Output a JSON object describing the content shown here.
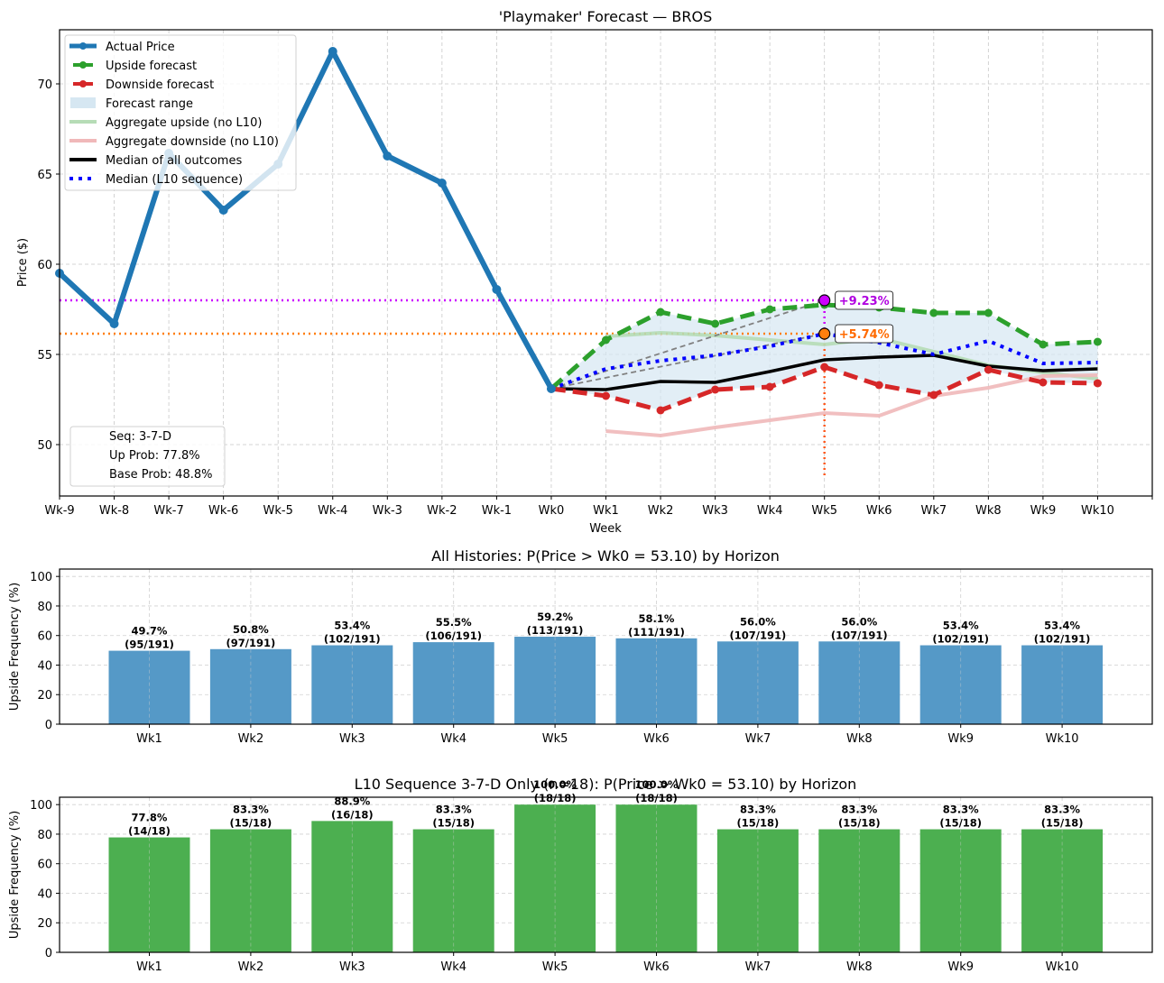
{
  "chart_data": [
    {
      "type": "line",
      "title": "'Playmaker' Forecast — BROS",
      "xlabel": "Week",
      "ylabel": "Price ($)",
      "grid": true,
      "x_ticks": [
        -9,
        -8,
        -7,
        -6,
        -5,
        -4,
        -3,
        -2,
        -1,
        0,
        1,
        2,
        3,
        4,
        5,
        6,
        7,
        8,
        9,
        10,
        11
      ],
      "x_tick_labels": [
        "Wk-9",
        "Wk-8",
        "Wk-7",
        "Wk-6",
        "Wk-5",
        "Wk-4",
        "Wk-3",
        "Wk-2",
        "Wk-1",
        "Wk0",
        "Wk1",
        "Wk2",
        "Wk3",
        "Wk4",
        "Wk5",
        "Wk6",
        "Wk7",
        "Wk8",
        "Wk9",
        "Wk10",
        ""
      ],
      "xlim": [
        -9,
        11
      ],
      "ylim": [
        47.15,
        73.0
      ],
      "y_ticks": [
        50,
        55,
        60,
        65,
        70
      ],
      "y_tick_labels": [
        "50",
        "55",
        "60",
        "65",
        "70"
      ],
      "legend_position": "top-left",
      "series": [
        {
          "key": "actual",
          "name": "Actual Price",
          "color": "#1f77b4",
          "x": [
            -9,
            -8,
            -7,
            -6,
            -5,
            -4,
            -3,
            -2,
            -1,
            0
          ],
          "values": [
            59.5,
            56.7,
            66.15,
            63.0,
            65.55,
            71.8,
            66.0,
            64.5,
            58.6,
            53.1
          ]
        },
        {
          "key": "upside",
          "name": "Upside forecast",
          "color": "#2ca02c",
          "x": [
            0,
            1,
            2,
            3,
            4,
            5,
            6,
            7,
            8,
            9,
            10
          ],
          "values": [
            53.1,
            55.8,
            57.35,
            56.7,
            57.5,
            57.75,
            57.6,
            57.3,
            57.3,
            55.55,
            55.7
          ]
        },
        {
          "key": "downside",
          "name": "Downside forecast",
          "color": "#d62728",
          "x": [
            0,
            1,
            2,
            3,
            4,
            5,
            6,
            7,
            8,
            9,
            10
          ],
          "values": [
            53.1,
            52.7,
            51.9,
            53.05,
            53.2,
            54.3,
            53.3,
            52.75,
            54.15,
            53.45,
            53.4
          ]
        },
        {
          "key": "range",
          "name": "Forecast range",
          "color": "#d6e7f2"
        },
        {
          "key": "agg_up",
          "name": "Aggregate upside (no L10)",
          "color": "#b6dcb6",
          "x": [
            1,
            2,
            3,
            4,
            5,
            6,
            7,
            8,
            9,
            10
          ],
          "values": [
            56.0,
            56.2,
            56.05,
            55.8,
            55.55,
            55.9,
            55.15,
            54.4,
            54.0,
            53.65
          ]
        },
        {
          "key": "agg_down",
          "name": "Aggregate downside (no L10)",
          "color": "#f0b8b9",
          "x": [
            1,
            2,
            3,
            4,
            5,
            6,
            7,
            8,
            9,
            10
          ],
          "values": [
            50.75,
            50.5,
            50.95,
            51.35,
            51.75,
            51.6,
            52.7,
            53.15,
            53.8,
            53.85
          ]
        },
        {
          "key": "median_all",
          "name": "Median of all outcomes",
          "color": "#000000",
          "x": [
            0,
            1,
            2,
            3,
            4,
            5,
            6,
            7,
            8,
            9,
            10
          ],
          "values": [
            53.1,
            53.05,
            53.5,
            53.45,
            54.05,
            54.7,
            54.85,
            54.95,
            54.35,
            54.1,
            54.2
          ]
        },
        {
          "key": "median_l10",
          "name": "Median (L10 sequence)",
          "color": "#0000ff",
          "x": [
            0,
            1,
            2,
            3,
            4,
            5,
            6,
            7,
            8,
            9,
            10
          ],
          "values": [
            53.1,
            54.2,
            54.65,
            54.95,
            55.45,
            56.15,
            55.65,
            55.0,
            55.75,
            54.5,
            54.55
          ]
        }
      ],
      "annotations": [
        {
          "label": "+9.23%",
          "x": 5,
          "y": 58.0,
          "color": "#cc00ff",
          "text_color": "#b000e0"
        },
        {
          "label": "+5.74%",
          "x": 5,
          "y": 56.15,
          "color": "#ff7f0e",
          "text_color": "#ff6a00"
        }
      ],
      "vertical_marker": {
        "x": 5,
        "y_from": 58.0,
        "y_to": 48.3
      },
      "info_box": {
        "lines": [
          "Seq: 3-7-D",
          "Up Prob: 77.8%",
          "Base Prob: 48.8%"
        ],
        "position": "bottom-left"
      }
    },
    {
      "type": "bar",
      "title": "All Histories: P(Price > Wk0 = 53.10) by Horizon",
      "ylabel": "Upside Frequency (%)",
      "color": "#5599c7",
      "categories": [
        "Wk1",
        "Wk2",
        "Wk3",
        "Wk4",
        "Wk5",
        "Wk6",
        "Wk7",
        "Wk8",
        "Wk9",
        "Wk10"
      ],
      "values": [
        49.7,
        50.8,
        53.4,
        55.5,
        59.2,
        58.1,
        56.0,
        56.0,
        53.4,
        53.4
      ],
      "labels": [
        "49.7%",
        "50.8%",
        "53.4%",
        "55.5%",
        "59.2%",
        "58.1%",
        "56.0%",
        "56.0%",
        "53.4%",
        "53.4%"
      ],
      "counts": [
        "(95/191)",
        "(97/191)",
        "(102/191)",
        "(106/191)",
        "(113/191)",
        "(111/191)",
        "(107/191)",
        "(107/191)",
        "(102/191)",
        "(102/191)"
      ],
      "ylim": [
        0,
        105
      ],
      "y_ticks": [
        0,
        20,
        40,
        60,
        80,
        100
      ],
      "y_tick_labels": [
        "0",
        "20",
        "40",
        "60",
        "80",
        "100"
      ],
      "grid": true
    },
    {
      "type": "bar",
      "title": "L10 Sequence 3-7-D Only (n=18): P(Price > Wk0 = 53.10) by Horizon",
      "ylabel": "Upside Frequency (%)",
      "color": "#4caf50",
      "categories": [
        "Wk1",
        "Wk2",
        "Wk3",
        "Wk4",
        "Wk5",
        "Wk6",
        "Wk7",
        "Wk8",
        "Wk9",
        "Wk10"
      ],
      "values": [
        77.8,
        83.3,
        88.9,
        83.3,
        100.0,
        100.0,
        83.3,
        83.3,
        83.3,
        83.3
      ],
      "labels": [
        "77.8%",
        "83.3%",
        "88.9%",
        "83.3%",
        "100.0%",
        "100.0%",
        "83.3%",
        "83.3%",
        "83.3%",
        "83.3%"
      ],
      "counts": [
        "(14/18)",
        "(15/18)",
        "(16/18)",
        "(15/18)",
        "(18/18)",
        "(18/18)",
        "(15/18)",
        "(15/18)",
        "(15/18)",
        "(15/18)"
      ],
      "ylim": [
        0,
        105
      ],
      "y_ticks": [
        0,
        20,
        40,
        60,
        80,
        100
      ],
      "y_tick_labels": [
        "0",
        "20",
        "40",
        "60",
        "80",
        "100"
      ],
      "grid": true
    }
  ]
}
